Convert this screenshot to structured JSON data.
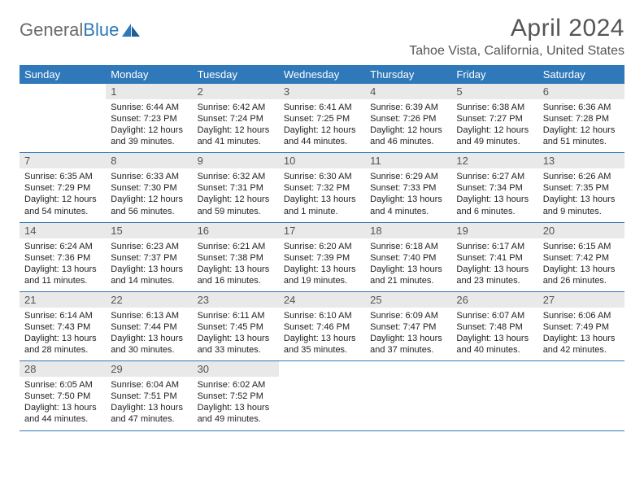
{
  "brand": {
    "part1": "General",
    "part2": "Blue"
  },
  "month_title": "April 2024",
  "location": "Tahoe Vista, California, United States",
  "colors": {
    "header_bg": "#2f78b9",
    "daynum_bg": "#e9e9e9",
    "text": "#555555",
    "rule": "#2f78b9"
  },
  "dow": [
    "Sunday",
    "Monday",
    "Tuesday",
    "Wednesday",
    "Thursday",
    "Friday",
    "Saturday"
  ],
  "weeks": [
    [
      null,
      {
        "n": "1",
        "sr": "6:44 AM",
        "ss": "7:23 PM",
        "dl": "12 hours and 39 minutes."
      },
      {
        "n": "2",
        "sr": "6:42 AM",
        "ss": "7:24 PM",
        "dl": "12 hours and 41 minutes."
      },
      {
        "n": "3",
        "sr": "6:41 AM",
        "ss": "7:25 PM",
        "dl": "12 hours and 44 minutes."
      },
      {
        "n": "4",
        "sr": "6:39 AM",
        "ss": "7:26 PM",
        "dl": "12 hours and 46 minutes."
      },
      {
        "n": "5",
        "sr": "6:38 AM",
        "ss": "7:27 PM",
        "dl": "12 hours and 49 minutes."
      },
      {
        "n": "6",
        "sr": "6:36 AM",
        "ss": "7:28 PM",
        "dl": "12 hours and 51 minutes."
      }
    ],
    [
      {
        "n": "7",
        "sr": "6:35 AM",
        "ss": "7:29 PM",
        "dl": "12 hours and 54 minutes."
      },
      {
        "n": "8",
        "sr": "6:33 AM",
        "ss": "7:30 PM",
        "dl": "12 hours and 56 minutes."
      },
      {
        "n": "9",
        "sr": "6:32 AM",
        "ss": "7:31 PM",
        "dl": "12 hours and 59 minutes."
      },
      {
        "n": "10",
        "sr": "6:30 AM",
        "ss": "7:32 PM",
        "dl": "13 hours and 1 minute."
      },
      {
        "n": "11",
        "sr": "6:29 AM",
        "ss": "7:33 PM",
        "dl": "13 hours and 4 minutes."
      },
      {
        "n": "12",
        "sr": "6:27 AM",
        "ss": "7:34 PM",
        "dl": "13 hours and 6 minutes."
      },
      {
        "n": "13",
        "sr": "6:26 AM",
        "ss": "7:35 PM",
        "dl": "13 hours and 9 minutes."
      }
    ],
    [
      {
        "n": "14",
        "sr": "6:24 AM",
        "ss": "7:36 PM",
        "dl": "13 hours and 11 minutes."
      },
      {
        "n": "15",
        "sr": "6:23 AM",
        "ss": "7:37 PM",
        "dl": "13 hours and 14 minutes."
      },
      {
        "n": "16",
        "sr": "6:21 AM",
        "ss": "7:38 PM",
        "dl": "13 hours and 16 minutes."
      },
      {
        "n": "17",
        "sr": "6:20 AM",
        "ss": "7:39 PM",
        "dl": "13 hours and 19 minutes."
      },
      {
        "n": "18",
        "sr": "6:18 AM",
        "ss": "7:40 PM",
        "dl": "13 hours and 21 minutes."
      },
      {
        "n": "19",
        "sr": "6:17 AM",
        "ss": "7:41 PM",
        "dl": "13 hours and 23 minutes."
      },
      {
        "n": "20",
        "sr": "6:15 AM",
        "ss": "7:42 PM",
        "dl": "13 hours and 26 minutes."
      }
    ],
    [
      {
        "n": "21",
        "sr": "6:14 AM",
        "ss": "7:43 PM",
        "dl": "13 hours and 28 minutes."
      },
      {
        "n": "22",
        "sr": "6:13 AM",
        "ss": "7:44 PM",
        "dl": "13 hours and 30 minutes."
      },
      {
        "n": "23",
        "sr": "6:11 AM",
        "ss": "7:45 PM",
        "dl": "13 hours and 33 minutes."
      },
      {
        "n": "24",
        "sr": "6:10 AM",
        "ss": "7:46 PM",
        "dl": "13 hours and 35 minutes."
      },
      {
        "n": "25",
        "sr": "6:09 AM",
        "ss": "7:47 PM",
        "dl": "13 hours and 37 minutes."
      },
      {
        "n": "26",
        "sr": "6:07 AM",
        "ss": "7:48 PM",
        "dl": "13 hours and 40 minutes."
      },
      {
        "n": "27",
        "sr": "6:06 AM",
        "ss": "7:49 PM",
        "dl": "13 hours and 42 minutes."
      }
    ],
    [
      {
        "n": "28",
        "sr": "6:05 AM",
        "ss": "7:50 PM",
        "dl": "13 hours and 44 minutes."
      },
      {
        "n": "29",
        "sr": "6:04 AM",
        "ss": "7:51 PM",
        "dl": "13 hours and 47 minutes."
      },
      {
        "n": "30",
        "sr": "6:02 AM",
        "ss": "7:52 PM",
        "dl": "13 hours and 49 minutes."
      },
      null,
      null,
      null,
      null
    ]
  ]
}
